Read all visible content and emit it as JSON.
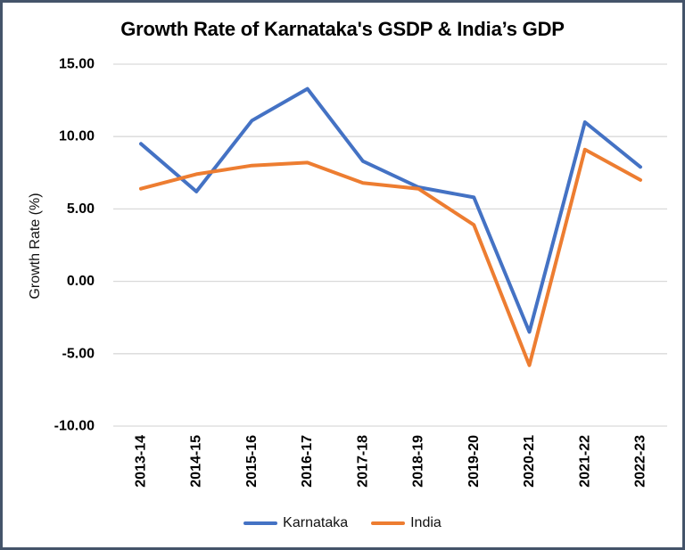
{
  "window": {
    "border_color": "#44546A",
    "background_color": "#FFFFFF"
  },
  "chart_data": {
    "type": "line",
    "title": "Growth Rate of Karnataka's GSDP & India’s GDP",
    "xlabel": "",
    "ylabel": "Growth Rate (%)",
    "categories": [
      "2013-14",
      "2014-15",
      "2015-16",
      "2016-17",
      "2017-18",
      "2018-19",
      "2019-20",
      "2020-21",
      "2021-22",
      "2022-23"
    ],
    "series": [
      {
        "name": "Karnataka",
        "color": "#4472C4",
        "values": [
          9.5,
          6.2,
          11.1,
          13.3,
          8.3,
          6.5,
          5.8,
          -3.5,
          11.0,
          7.9
        ]
      },
      {
        "name": "India",
        "color": "#ED7D31",
        "values": [
          6.4,
          7.4,
          8.0,
          8.2,
          6.8,
          6.4,
          3.9,
          -5.8,
          9.1,
          7.0
        ]
      }
    ],
    "y_ticks": [
      "15.00",
      "10.00",
      "5.00",
      "0.00",
      "-5.00",
      "-10.00"
    ],
    "y_tick_values": [
      15,
      10,
      5,
      0,
      -5,
      -10
    ],
    "ylim": [
      -10,
      15
    ],
    "grid": true,
    "gridline_color": "#D9D9D9",
    "legend_position": "bottom"
  }
}
